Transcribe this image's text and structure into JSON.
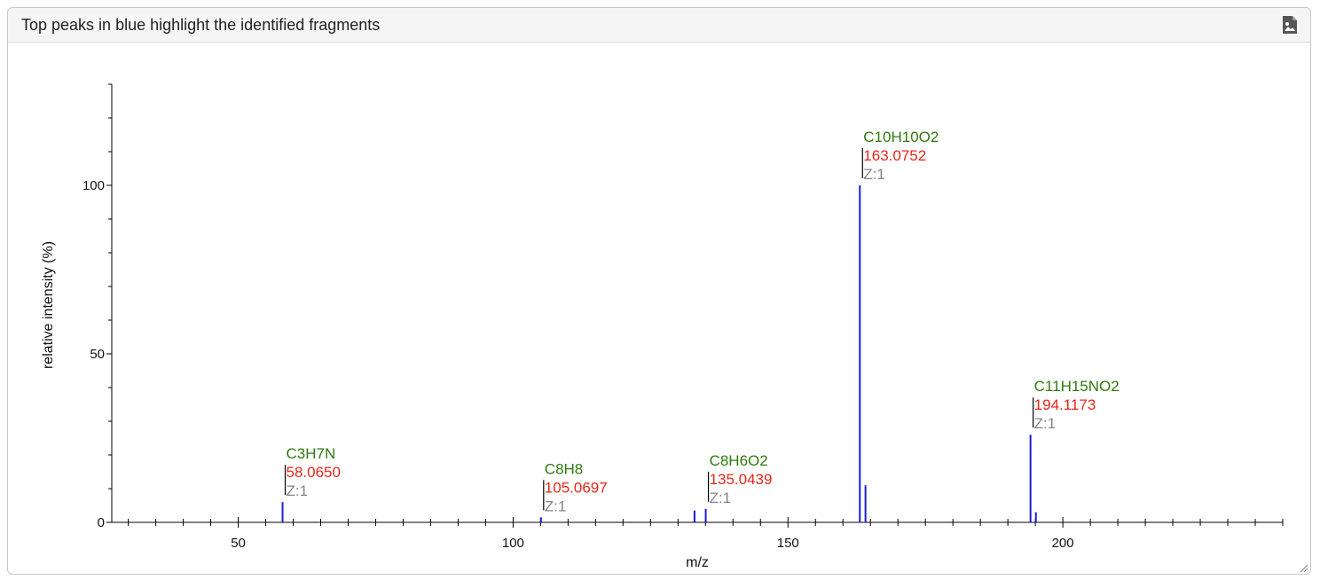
{
  "panel": {
    "title": "Top peaks in blue highlight the identified fragments",
    "export_icon": "image-file-icon"
  },
  "chart_data": {
    "type": "bar",
    "title": "Top peaks in blue highlight the identified fragments",
    "xlabel": "m/z",
    "ylabel": "relative intensity (%)",
    "xlim": [
      27,
      240
    ],
    "ylim": [
      0,
      130
    ],
    "x_ticks": [
      50,
      100,
      150,
      200
    ],
    "y_ticks": [
      0,
      50,
      100
    ],
    "grid": false,
    "peak_color": "#1c1cd6",
    "peaks": [
      {
        "mz": 58.065,
        "intensity": 6
      },
      {
        "mz": 105.0697,
        "intensity": 1.5
      },
      {
        "mz": 133.0,
        "intensity": 3.5
      },
      {
        "mz": 135.0439,
        "intensity": 4
      },
      {
        "mz": 163.0752,
        "intensity": 100
      },
      {
        "mz": 164.1,
        "intensity": 11
      },
      {
        "mz": 194.1173,
        "intensity": 26
      },
      {
        "mz": 195.1,
        "intensity": 3
      }
    ],
    "annotations": [
      {
        "formula": "C3H7N",
        "mz": "58.0650",
        "charge": "Z:1",
        "x": 58.065,
        "y": 6
      },
      {
        "formula": "C8H8",
        "mz": "105.0697",
        "charge": "Z:1",
        "x": 105.0697,
        "y": 1.5
      },
      {
        "formula": "C8H6O2",
        "mz": "135.0439",
        "charge": "Z:1",
        "x": 135.0439,
        "y": 4
      },
      {
        "formula": "C10H10O2",
        "mz": "163.0752",
        "charge": "Z:1",
        "x": 163.0752,
        "y": 100
      },
      {
        "formula": "C11H15NO2",
        "mz": "194.1173",
        "charge": "Z:1",
        "x": 194.1173,
        "y": 26
      }
    ]
  }
}
